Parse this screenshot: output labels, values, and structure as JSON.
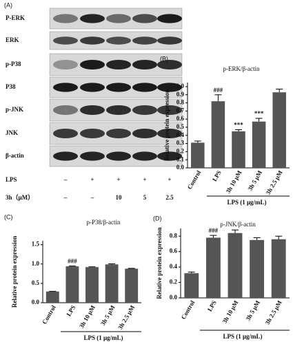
{
  "blot": {
    "panel": "(A)",
    "rows": [
      "P-ERK",
      "ERK",
      "p-P38",
      "P38",
      "p-JNK",
      "JNK",
      "β-actin"
    ],
    "lane_rows": [
      {
        "label": "LPS",
        "cells": [
          "–",
          "+",
          "+",
          "+",
          "+"
        ]
      },
      {
        "label": "3h（μM）",
        "cells": [
          "–",
          "–",
          "10",
          "5",
          "2.5"
        ]
      }
    ]
  },
  "chart_data": [
    {
      "type": "bar",
      "panel": "(B)",
      "title": "p-ERK/β-actin",
      "ylabel": "Relative protein expression",
      "xlabel": "LPS (1 μg/mL)",
      "categories": [
        "Control",
        "LPS",
        "3h 10 μM",
        "3h 5 μM",
        "3h 2.5 μM"
      ],
      "values": [
        0.31,
        0.82,
        0.45,
        0.57,
        0.93
      ],
      "errors": [
        0.02,
        0.08,
        0.02,
        0.04,
        0.04
      ],
      "annotations": [
        null,
        "###",
        "***",
        "***",
        null
      ],
      "color": "#555555",
      "ylim": [
        0,
        1.05
      ],
      "yticks": [
        {
          "value": 0,
          "label": "0.0"
        },
        0.1,
        0.2,
        0.3,
        0.4,
        0.5,
        0.6,
        0.7,
        0.8,
        0.9,
        {
          "value": 1,
          "label": "1.0"
        }
      ]
    },
    {
      "type": "bar",
      "panel": "(C)",
      "title": "p-P38/β-actin",
      "ylabel": "Relative protein expression",
      "xlabel": "LPS (1 μg/mL)",
      "categories": [
        "Control",
        "LPS",
        "3h 10 μM",
        "3h 5 μM",
        "3h 2.5 μM"
      ],
      "values": [
        0.29,
        0.94,
        0.92,
        0.99,
        0.88
      ],
      "errors": [
        0.005,
        0.01,
        0.01,
        0.015,
        0.01
      ],
      "annotations": [
        null,
        "###",
        null,
        null,
        null
      ],
      "color": "#555555",
      "ylim": [
        0,
        1.6
      ],
      "yticks": [
        {
          "value": 0,
          "label": "0.0"
        },
        0.5,
        {
          "value": 1,
          "label": "1.0"
        },
        1.5
      ]
    },
    {
      "type": "bar",
      "panel": "(D)",
      "title": "p-JNK/β-actin",
      "ylabel": "Relative protein expression",
      "xlabel": "LPS (1 μg/mL)",
      "categories": [
        "Control",
        "LPS",
        "3h 10 μM",
        "3h 5 μM",
        "3h 2.5 μM"
      ],
      "values": [
        0.32,
        0.78,
        0.84,
        0.75,
        0.76
      ],
      "errors": [
        0.015,
        0.03,
        0.04,
        0.03,
        0.04
      ],
      "annotations": [
        null,
        "###",
        null,
        null,
        null
      ],
      "color": "#555555",
      "ylim": [
        0,
        0.9
      ],
      "yticks": [
        {
          "value": 0,
          "label": "0.0"
        },
        0.2,
        0.4,
        0.6,
        0.8
      ]
    }
  ]
}
